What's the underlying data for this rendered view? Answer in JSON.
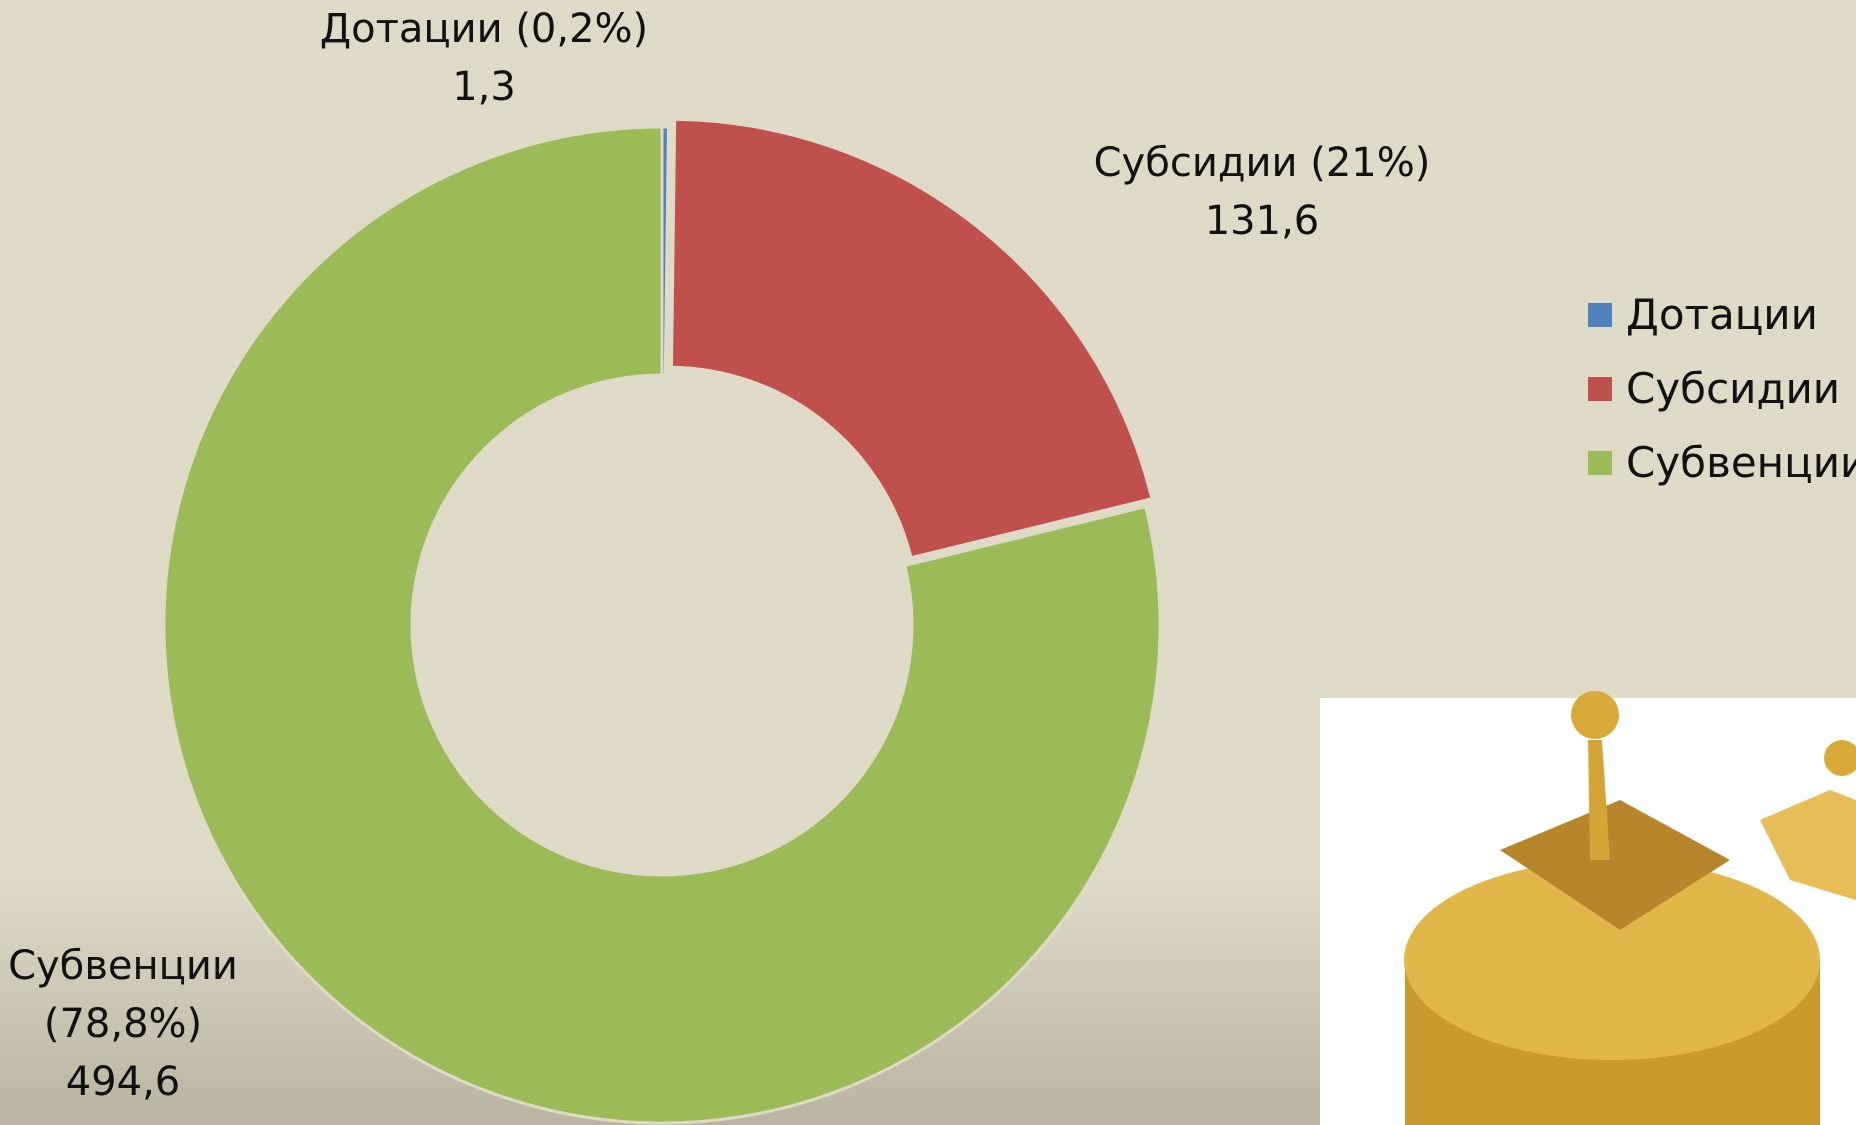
{
  "chart_data": {
    "type": "doughnut",
    "categories": [
      "Дотации",
      "Субсидии",
      "Субвенции"
    ],
    "values": [
      1.3,
      131.6,
      494.6
    ],
    "value_labels": [
      "1,3",
      "131,6",
      "494,6"
    ],
    "slice_labels": [
      "Дотации (0,2%)",
      "Субсидии (21%)",
      "Субвенции (78,8%)"
    ],
    "colors": [
      "#4f81bd",
      "#c0504d",
      "#9bbb59"
    ],
    "legend": "right"
  }
}
